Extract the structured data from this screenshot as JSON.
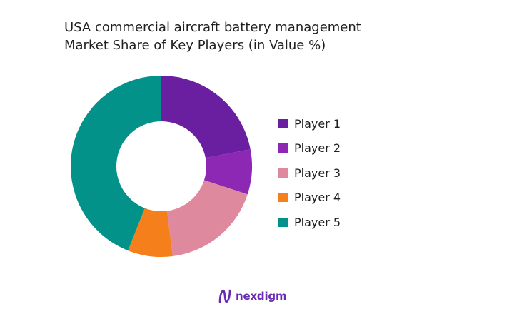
{
  "chart_data": {
    "type": "pie",
    "variant": "donut",
    "title": [
      "USA commercial aircraft battery management",
      "Market Share of Key Players (in Value %)"
    ],
    "categories": [
      "Player 1",
      "Player 2",
      "Player 3",
      "Player 4",
      "Player 5"
    ],
    "values": [
      22,
      8,
      18,
      8,
      44
    ],
    "colors": [
      "#6a1fa0",
      "#8c28b4",
      "#de899e",
      "#f57f1b",
      "#03928a"
    ],
    "legend_position": "right"
  },
  "logo": {
    "text": "nexdigm"
  }
}
